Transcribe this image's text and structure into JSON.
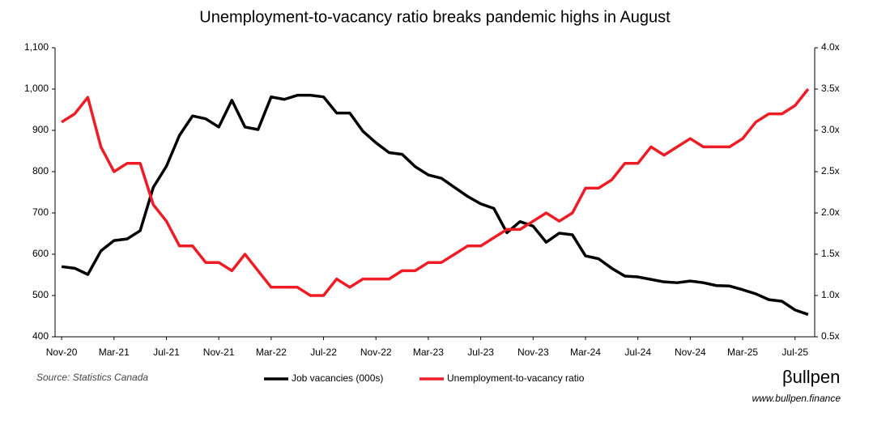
{
  "chart_data": {
    "type": "line",
    "title": "Unemployment-to-vacancy ratio breaks pandemic highs in August",
    "source": "Source: Statistics Canada",
    "brand": "βullpen",
    "website": "www.bullpen.finance",
    "categories": [
      "Nov-20",
      null,
      null,
      null,
      "Mar-21",
      null,
      null,
      null,
      "Jul-21",
      null,
      null,
      null,
      "Nov-21",
      null,
      null,
      null,
      "Mar-22",
      null,
      null,
      null,
      "Jul-22",
      null,
      null,
      null,
      "Nov-22",
      null,
      null,
      null,
      "Mar-23",
      null,
      null,
      null,
      "Jul-23",
      null,
      null,
      null,
      "Nov-23",
      null,
      null,
      null,
      "Mar-24",
      null,
      null,
      null,
      "Jul-24",
      null,
      null,
      null,
      "Nov-24",
      null,
      null,
      null,
      "Mar-25",
      null,
      null,
      null,
      "Jul-25",
      null
    ],
    "series": [
      {
        "name": "Job vacancies (000s)",
        "color": "#000000",
        "values": [
          570,
          566,
          551,
          608,
          633,
          637,
          657,
          762,
          813,
          888,
          935,
          928,
          908,
          973,
          908,
          902,
          981,
          975,
          985,
          985,
          981,
          942,
          942,
          898,
          870,
          846,
          842,
          812,
          792,
          784,
          762,
          740,
          722,
          711,
          652,
          679,
          668,
          629,
          651,
          647,
          596,
          589,
          566,
          547,
          545,
          539,
          533,
          531,
          535,
          531,
          524,
          523,
          514,
          504,
          490,
          486,
          465,
          454
        ]
      },
      {
        "name": "Unemployment-to-vacancy ratio",
        "color": "#ee1c25",
        "axis": "y2",
        "values": [
          3.1,
          3.2,
          3.4,
          2.8,
          2.5,
          2.6,
          2.6,
          2.1,
          1.9,
          1.6,
          1.6,
          1.4,
          1.4,
          1.3,
          1.5,
          1.3,
          1.1,
          1.1,
          1.1,
          1.0,
          1.0,
          1.2,
          1.1,
          1.2,
          1.2,
          1.2,
          1.3,
          1.3,
          1.4,
          1.4,
          1.5,
          1.6,
          1.6,
          1.7,
          1.8,
          1.8,
          1.9,
          2.0,
          1.9,
          2.0,
          2.3,
          2.3,
          2.4,
          2.6,
          2.6,
          2.8,
          2.7,
          2.8,
          2.9,
          2.8,
          2.8,
          2.8,
          2.9,
          3.1,
          3.2,
          3.2,
          3.3,
          3.5
        ]
      }
    ],
    "ylim": [
      400,
      1100
    ],
    "yticks": [
      400,
      500,
      600,
      700,
      800,
      900,
      {
        "value": 1000,
        "label": "1,000"
      },
      {
        "value": 1100,
        "label": "1,100"
      }
    ],
    "y2lim": [
      0.5,
      4.0
    ],
    "y2ticks": [
      {
        "value": 0.5,
        "label": "0.5x"
      },
      {
        "value": 1.0,
        "label": "1.0x"
      },
      {
        "value": 1.5,
        "label": "1.5x"
      },
      {
        "value": 2.0,
        "label": "2.0x"
      },
      {
        "value": 2.5,
        "label": "2.5x"
      },
      {
        "value": 3.0,
        "label": "3.0x"
      },
      {
        "value": 3.5,
        "label": "3.5x"
      },
      {
        "value": 4.0,
        "label": "4.0x"
      }
    ],
    "legend": "bottom",
    "grid": false
  }
}
